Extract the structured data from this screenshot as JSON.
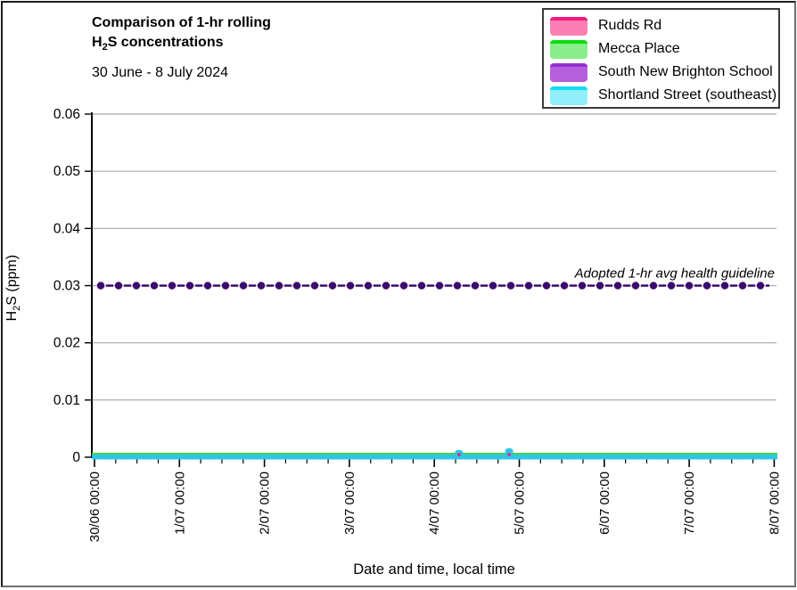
{
  "title": {
    "line1": "Comparison of 1-hr rolling",
    "line2_pre": "H",
    "line2_sub": "2",
    "line2_post": "S concentrations",
    "subtitle": "30 June - 8 July 2024"
  },
  "legend": {
    "items": [
      {
        "label": "Rudds Rd",
        "fill": "#FA80B4",
        "line": "#F2197E"
      },
      {
        "label": "Mecca Place",
        "fill": "#8BEC8B",
        "line": "#0ADC0A"
      },
      {
        "label": "South New Brighton School",
        "fill": "#B55FDC",
        "line": "#9330D2"
      },
      {
        "label": "Shortland Street (southeast)",
        "fill": "#90EFFA",
        "line": "#0ADAF2"
      }
    ]
  },
  "axes": {
    "y_title_pre": "H",
    "y_title_sub": "2",
    "y_title_post": "S (ppm)",
    "x_title": "Date and time, local time",
    "y_ticks": [
      "0",
      "0.01",
      "0.02",
      "0.03",
      "0.04",
      "0.05",
      "0.06"
    ],
    "x_ticks": [
      "30/06 00:00",
      "1/07 00:00",
      "2/07 00:00",
      "3/07 00:00",
      "4/07 00:00",
      "5/07 00:00",
      "6/07 00:00",
      "7/07 00:00",
      "8/07 00:00"
    ]
  },
  "annotation": {
    "guideline_label": "Adopted 1-hr avg health guideline"
  },
  "chart_data": {
    "type": "line",
    "title": "Comparison of 1-hr rolling H2S concentrations",
    "subtitle": "30 June - 8 July 2024",
    "xlabel": "Date and time, local time",
    "ylabel": "H2S (ppm)",
    "ylim": [
      0,
      0.06
    ],
    "y_tick_values": [
      0,
      0.01,
      0.02,
      0.03,
      0.04,
      0.05,
      0.06
    ],
    "x_categories": [
      "30/06 00:00",
      "1/07 00:00",
      "2/07 00:00",
      "3/07 00:00",
      "4/07 00:00",
      "5/07 00:00",
      "6/07 00:00",
      "7/07 00:00",
      "8/07 00:00"
    ],
    "x_minor_tick_interval_hours": 6,
    "grid": "horizontal",
    "legend_position": "top-right",
    "series": [
      {
        "name": "Rudds Rd",
        "color": "#F2197E",
        "baseline_ppm": 0.0,
        "description": "flat at ~0 ppm for entire period"
      },
      {
        "name": "Mecca Place",
        "color": "#49D349",
        "baseline_ppm": 0.0,
        "description": "flat at ~0 ppm for entire period"
      },
      {
        "name": "South New Brighton School",
        "color": "#B55FDC",
        "baseline_ppm": 0.0,
        "description": "flat at ~0 ppm for entire period"
      },
      {
        "name": "Shortland Street (southeast)",
        "color": "#2EC6E8",
        "baseline_ppm": 0.0,
        "description": "flat at ~0 ppm with two brief small spikes",
        "spikes": [
          {
            "x": "4/07 07:00",
            "day_offset": 4.29,
            "y_ppm": 0.0008
          },
          {
            "x": "4/07 21:00",
            "day_offset": 4.88,
            "y_ppm": 0.0011
          }
        ]
      }
    ],
    "guideline": {
      "label": "Adopted 1-hr avg health guideline",
      "y_ppm": 0.03,
      "color": "#3A0B6E",
      "style": "dashed-with-round-markers"
    }
  }
}
